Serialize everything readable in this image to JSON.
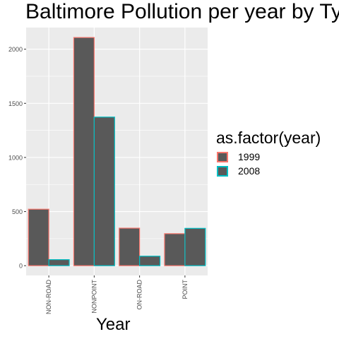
{
  "chart_data": {
    "type": "bar",
    "title": "Baltimore Pollution per year by Ty",
    "xlabel": "Year",
    "ylabel": "",
    "categories": [
      "NON-ROAD",
      "NONPOINT",
      "ON-ROAD",
      "POINT"
    ],
    "series": [
      {
        "name": "1999",
        "values": [
          522,
          2108,
          347,
          296
        ],
        "outline_color": "#F8766D"
      },
      {
        "name": "2008",
        "values": [
          56,
          1373,
          88,
          345
        ],
        "outline_color": "#00BFC4"
      }
    ],
    "bar_fill": "#595959",
    "panel_background": "#EBEBEB",
    "grid": true,
    "ylim": [
      -90,
      2200
    ],
    "yticks": [
      0,
      500,
      1000,
      1500,
      2000
    ],
    "ytick_labels": [
      "0",
      "500",
      "1000",
      "1500",
      "2000"
    ],
    "legend": {
      "title": "as.factor(year)",
      "placement": "right"
    }
  }
}
